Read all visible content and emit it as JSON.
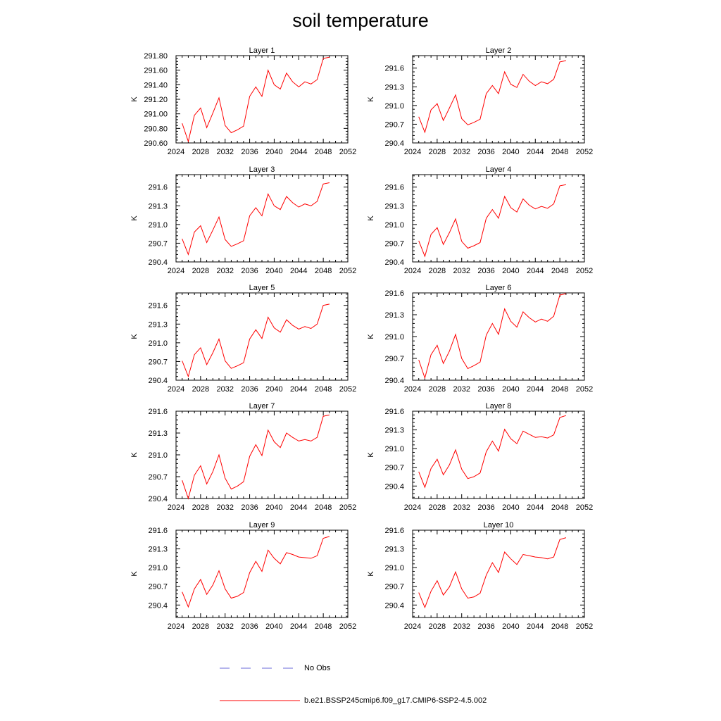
{
  "title": "soil temperature",
  "legend": [
    {
      "label": "No Obs",
      "style": "dashed",
      "color": "#6a6ad8"
    },
    {
      "label": "b.e21.BSSP245cmip6.f09_g17.CMIP6-SSP2-4.5.002",
      "style": "solid",
      "color": "#ff0000"
    }
  ],
  "chart_data": [
    {
      "type": "line",
      "title": "Layer 1",
      "ylabel": "K",
      "xlim": [
        2024,
        2052
      ],
      "xticks": [
        "2024",
        "2028",
        "2032",
        "2036",
        "2040",
        "2044",
        "2048",
        "2052"
      ],
      "ylim": [
        290.6,
        291.8
      ],
      "yticks": [
        "290.60",
        "290.80",
        "291.00",
        "291.20",
        "291.40",
        "291.60",
        "291.80"
      ],
      "series": [
        {
          "color": "#ff0000",
          "x": [
            2025,
            2026,
            2027,
            2028,
            2029,
            2030,
            2031,
            2032,
            2033,
            2034,
            2035,
            2036,
            2037,
            2038,
            2039,
            2040,
            2041,
            2042,
            2043,
            2044,
            2045,
            2046,
            2047,
            2048,
            2049
          ],
          "values": [
            290.87,
            290.62,
            290.98,
            291.08,
            290.81,
            291.01,
            291.22,
            290.84,
            290.74,
            290.78,
            290.83,
            291.24,
            291.37,
            291.24,
            291.6,
            291.4,
            291.34,
            291.56,
            291.44,
            291.37,
            291.44,
            291.41,
            291.47,
            291.76,
            291.78
          ]
        }
      ]
    },
    {
      "type": "line",
      "title": "Layer 2",
      "ylabel": "K",
      "xlim": [
        2024,
        2052
      ],
      "xticks": [
        "2024",
        "2028",
        "2032",
        "2036",
        "2040",
        "2044",
        "2048",
        "2052"
      ],
      "ylim": [
        290.4,
        291.8
      ],
      "yticks": [
        "290.4",
        "290.7",
        "291.0",
        "291.3",
        "291.6"
      ],
      "series": [
        {
          "color": "#ff0000",
          "x": [
            2025,
            2026,
            2027,
            2028,
            2029,
            2030,
            2031,
            2032,
            2033,
            2034,
            2035,
            2036,
            2037,
            2038,
            2039,
            2040,
            2041,
            2042,
            2043,
            2044,
            2045,
            2046,
            2047,
            2048,
            2049
          ],
          "values": [
            290.82,
            290.57,
            290.93,
            291.03,
            290.76,
            290.96,
            291.17,
            290.79,
            290.69,
            290.73,
            290.78,
            291.19,
            291.32,
            291.19,
            291.54,
            291.34,
            291.29,
            291.5,
            291.39,
            291.32,
            291.38,
            291.35,
            291.42,
            291.7,
            291.72
          ]
        }
      ]
    },
    {
      "type": "line",
      "title": "Layer 3",
      "ylabel": "K",
      "xlim": [
        2024,
        2052
      ],
      "xticks": [
        "2024",
        "2028",
        "2032",
        "2036",
        "2040",
        "2044",
        "2048",
        "2052"
      ],
      "ylim": [
        290.4,
        291.8
      ],
      "yticks": [
        "290.4",
        "290.7",
        "291.0",
        "291.3",
        "291.6"
      ],
      "series": [
        {
          "color": "#ff0000",
          "x": [
            2025,
            2026,
            2027,
            2028,
            2029,
            2030,
            2031,
            2032,
            2033,
            2034,
            2035,
            2036,
            2037,
            2038,
            2039,
            2040,
            2041,
            2042,
            2043,
            2044,
            2045,
            2046,
            2047,
            2048,
            2049
          ],
          "values": [
            290.77,
            290.52,
            290.88,
            290.98,
            290.71,
            290.91,
            291.12,
            290.76,
            290.65,
            290.69,
            290.74,
            291.14,
            291.27,
            291.14,
            291.49,
            291.3,
            291.24,
            291.45,
            291.35,
            291.28,
            291.33,
            291.3,
            291.37,
            291.65,
            291.67
          ]
        }
      ]
    },
    {
      "type": "line",
      "title": "Layer 4",
      "ylabel": "K",
      "xlim": [
        2024,
        2052
      ],
      "xticks": [
        "2024",
        "2028",
        "2032",
        "2036",
        "2040",
        "2044",
        "2048",
        "2052"
      ],
      "ylim": [
        290.4,
        291.8
      ],
      "yticks": [
        "290.4",
        "290.7",
        "291.0",
        "291.3",
        "291.6"
      ],
      "series": [
        {
          "color": "#ff0000",
          "x": [
            2025,
            2026,
            2027,
            2028,
            2029,
            2030,
            2031,
            2032,
            2033,
            2034,
            2035,
            2036,
            2037,
            2038,
            2039,
            2040,
            2041,
            2042,
            2043,
            2044,
            2045,
            2046,
            2047,
            2048,
            2049
          ],
          "values": [
            290.74,
            290.49,
            290.84,
            290.95,
            290.68,
            290.87,
            291.09,
            290.73,
            290.62,
            290.66,
            290.71,
            291.1,
            291.24,
            291.1,
            291.45,
            291.27,
            291.2,
            291.41,
            291.31,
            291.25,
            291.29,
            291.26,
            291.33,
            291.62,
            291.64
          ]
        }
      ]
    },
    {
      "type": "line",
      "title": "Layer 5",
      "ylabel": "K",
      "xlim": [
        2024,
        2052
      ],
      "xticks": [
        "2024",
        "2028",
        "2032",
        "2036",
        "2040",
        "2044",
        "2048",
        "2052"
      ],
      "ylim": [
        290.4,
        291.8
      ],
      "yticks": [
        "290.4",
        "290.7",
        "291.0",
        "291.3",
        "291.6"
      ],
      "series": [
        {
          "color": "#ff0000",
          "x": [
            2025,
            2026,
            2027,
            2028,
            2029,
            2030,
            2031,
            2032,
            2033,
            2034,
            2035,
            2036,
            2037,
            2038,
            2039,
            2040,
            2041,
            2042,
            2043,
            2044,
            2045,
            2046,
            2047,
            2048,
            2049
          ],
          "values": [
            290.71,
            290.46,
            290.81,
            290.92,
            290.65,
            290.84,
            291.06,
            290.71,
            290.59,
            290.63,
            290.68,
            291.06,
            291.21,
            291.07,
            291.41,
            291.24,
            291.17,
            291.37,
            291.28,
            291.22,
            291.26,
            291.23,
            291.3,
            291.6,
            291.62
          ]
        }
      ]
    },
    {
      "type": "line",
      "title": "Layer 6",
      "ylabel": "K",
      "xlim": [
        2024,
        2052
      ],
      "xticks": [
        "2024",
        "2028",
        "2032",
        "2036",
        "2040",
        "2044",
        "2048",
        "2052"
      ],
      "ylim": [
        290.4,
        291.6
      ],
      "yticks": [
        "290.4",
        "290.7",
        "291.0",
        "291.3",
        "291.6"
      ],
      "series": [
        {
          "color": "#ff0000",
          "x": [
            2025,
            2026,
            2027,
            2028,
            2029,
            2030,
            2031,
            2032,
            2033,
            2034,
            2035,
            2036,
            2037,
            2038,
            2039,
            2040,
            2041,
            2042,
            2043,
            2044,
            2045,
            2046,
            2047,
            2048,
            2049
          ],
          "values": [
            290.68,
            290.43,
            290.75,
            290.88,
            290.63,
            290.8,
            291.03,
            290.7,
            290.56,
            290.6,
            290.65,
            291.02,
            291.18,
            291.03,
            291.38,
            291.21,
            291.13,
            291.34,
            291.26,
            291.2,
            291.24,
            291.21,
            291.28,
            291.57,
            291.59
          ]
        }
      ]
    },
    {
      "type": "line",
      "title": "Layer 7",
      "ylabel": "K",
      "xlim": [
        2024,
        2052
      ],
      "xticks": [
        "2024",
        "2028",
        "2032",
        "2036",
        "2040",
        "2044",
        "2048",
        "2052"
      ],
      "ylim": [
        290.4,
        291.6
      ],
      "yticks": [
        "290.4",
        "290.7",
        "291.0",
        "291.3",
        "291.6"
      ],
      "series": [
        {
          "color": "#ff0000",
          "x": [
            2025,
            2026,
            2027,
            2028,
            2029,
            2030,
            2031,
            2032,
            2033,
            2034,
            2035,
            2036,
            2037,
            2038,
            2039,
            2040,
            2041,
            2042,
            2043,
            2044,
            2045,
            2046,
            2047,
            2048,
            2049
          ],
          "values": [
            290.65,
            290.4,
            290.72,
            290.85,
            290.6,
            290.77,
            291.0,
            290.68,
            290.53,
            290.57,
            290.63,
            290.98,
            291.14,
            290.99,
            291.34,
            291.18,
            291.1,
            291.3,
            291.24,
            291.19,
            291.21,
            291.19,
            291.24,
            291.53,
            291.55
          ]
        }
      ]
    },
    {
      "type": "line",
      "title": "Layer 8",
      "ylabel": "K",
      "xlim": [
        2024,
        2052
      ],
      "xticks": [
        "2024",
        "2028",
        "2032",
        "2036",
        "2040",
        "2044",
        "2048",
        "2052"
      ],
      "ylim": [
        290.2,
        291.6
      ],
      "yticks": [
        "290.4",
        "290.7",
        "291.0",
        "291.3",
        "291.6"
      ],
      "series": [
        {
          "color": "#ff0000",
          "x": [
            2025,
            2026,
            2027,
            2028,
            2029,
            2030,
            2031,
            2032,
            2033,
            2034,
            2035,
            2036,
            2037,
            2038,
            2039,
            2040,
            2041,
            2042,
            2043,
            2044,
            2045,
            2046,
            2047,
            2048,
            2049
          ],
          "values": [
            290.63,
            290.38,
            290.68,
            290.83,
            290.58,
            290.74,
            290.98,
            290.67,
            290.52,
            290.55,
            290.61,
            290.95,
            291.12,
            290.96,
            291.31,
            291.16,
            291.08,
            291.28,
            291.23,
            291.18,
            291.19,
            291.17,
            291.22,
            291.5,
            291.53
          ]
        }
      ]
    },
    {
      "type": "line",
      "title": "Layer 9",
      "ylabel": "K",
      "xlim": [
        2024,
        2052
      ],
      "xticks": [
        "2024",
        "2028",
        "2032",
        "2036",
        "2040",
        "2044",
        "2048",
        "2052"
      ],
      "ylim": [
        290.2,
        291.6
      ],
      "yticks": [
        "290.4",
        "290.7",
        "291.0",
        "291.3",
        "291.6"
      ],
      "series": [
        {
          "color": "#ff0000",
          "x": [
            2025,
            2026,
            2027,
            2028,
            2029,
            2030,
            2031,
            2032,
            2033,
            2034,
            2035,
            2036,
            2037,
            2038,
            2039,
            2040,
            2041,
            2042,
            2043,
            2044,
            2045,
            2046,
            2047,
            2048,
            2049
          ],
          "values": [
            290.61,
            290.37,
            290.66,
            290.81,
            290.57,
            290.72,
            290.95,
            290.66,
            290.51,
            290.54,
            290.6,
            290.92,
            291.1,
            290.94,
            291.28,
            291.15,
            291.06,
            291.24,
            291.21,
            291.17,
            291.16,
            291.15,
            291.19,
            291.47,
            291.5
          ]
        }
      ]
    },
    {
      "type": "line",
      "title": "Layer 10",
      "ylabel": "K",
      "xlim": [
        2024,
        2052
      ],
      "xticks": [
        "2024",
        "2028",
        "2032",
        "2036",
        "2040",
        "2044",
        "2048",
        "2052"
      ],
      "ylim": [
        290.2,
        291.6
      ],
      "yticks": [
        "290.4",
        "290.7",
        "291.0",
        "291.3",
        "291.6"
      ],
      "series": [
        {
          "color": "#ff0000",
          "x": [
            2025,
            2026,
            2027,
            2028,
            2029,
            2030,
            2031,
            2032,
            2033,
            2034,
            2035,
            2036,
            2037,
            2038,
            2039,
            2040,
            2041,
            2042,
            2043,
            2044,
            2045,
            2046,
            2047,
            2048,
            2049
          ],
          "values": [
            290.6,
            290.36,
            290.62,
            290.79,
            290.56,
            290.69,
            290.93,
            290.66,
            290.51,
            290.53,
            290.59,
            290.88,
            291.08,
            290.92,
            291.25,
            291.14,
            291.05,
            291.21,
            291.19,
            291.17,
            291.16,
            291.14,
            291.17,
            291.45,
            291.48
          ]
        }
      ]
    }
  ]
}
